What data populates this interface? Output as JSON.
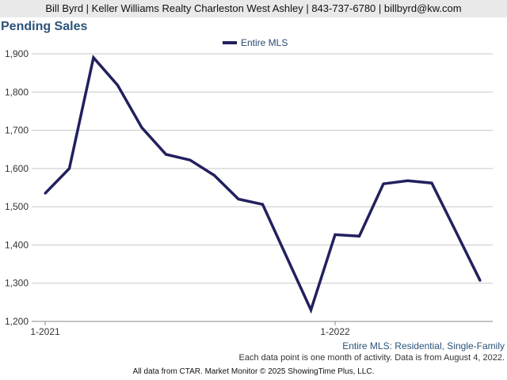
{
  "header": {
    "contact": "Bill Byrd | Keller Williams Realty Charleston West Ashley | 843-737-6780 | billbyrd@kw.com"
  },
  "chart_data": {
    "type": "line",
    "title": "Pending Sales",
    "x": [
      "2021-01",
      "2021-02",
      "2021-03",
      "2021-04",
      "2021-05",
      "2021-06",
      "2021-07",
      "2021-08",
      "2021-09",
      "2021-10",
      "2021-11",
      "2021-12",
      "2022-01",
      "2022-02",
      "2022-03",
      "2022-04",
      "2022-05",
      "2022-06",
      "2022-07"
    ],
    "series": [
      {
        "name": "Entire MLS",
        "color": "#22205e",
        "values": [
          1535,
          1600,
          1890,
          1818,
          1707,
          1637,
          1622,
          1582,
          1520,
          1506,
          1368,
          1230,
          1427,
          1423,
          1560,
          1568,
          1562,
          1435,
          1307
        ]
      }
    ],
    "xticks": [
      {
        "x": "2021-01",
        "label": "1-2021"
      },
      {
        "x": "2022-01",
        "label": "1-2022"
      }
    ],
    "ylim": [
      1200,
      1900
    ],
    "yticks": [
      "1,200",
      "1,300",
      "1,400",
      "1,500",
      "1,600",
      "1,700",
      "1,800",
      "1,900"
    ],
    "grid": true,
    "legend_position": "top-center",
    "gridline_color": "#c7c7c7"
  },
  "notes": {
    "mls_line": "Entire MLS: Residential, Single-Family",
    "data_note": "Each data point is one month of activity. Data is from August 4, 2022."
  },
  "footer": {
    "text": "All data from CTAR. Market Monitor © 2025 ShowingTime Plus, LLC."
  }
}
